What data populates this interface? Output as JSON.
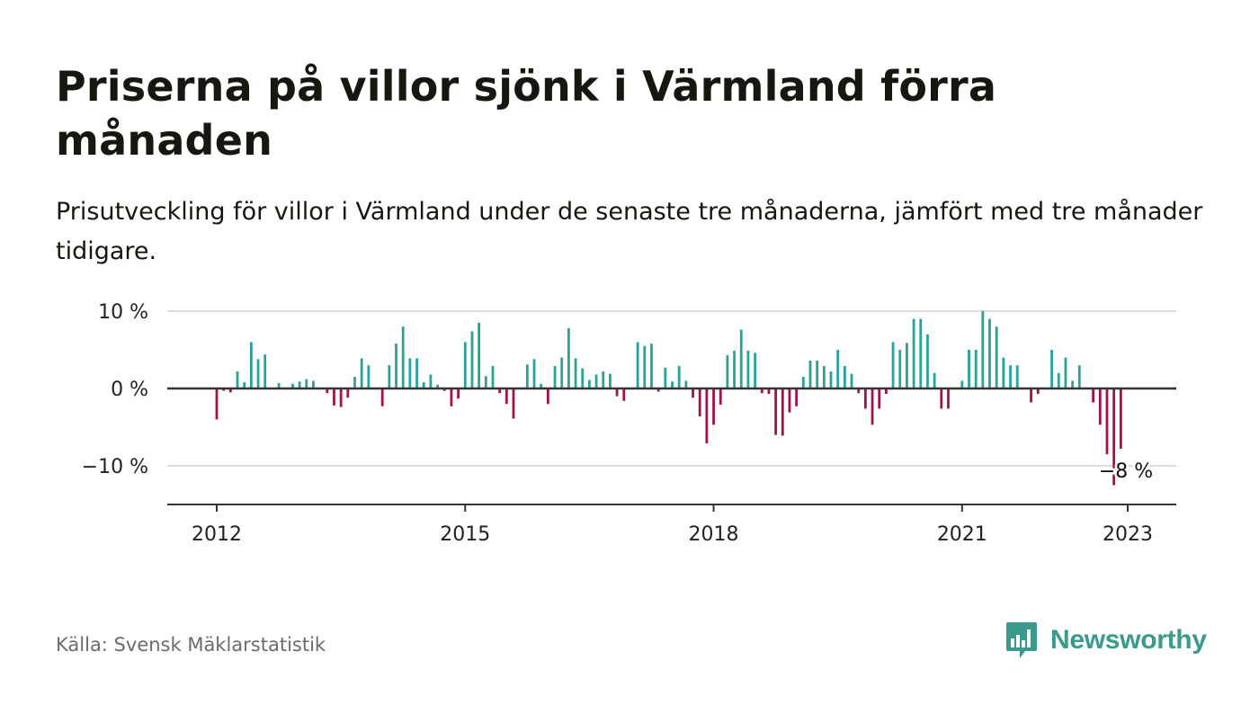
{
  "title": "Priserna på villor sjönk i Värmland förra månaden",
  "subtitle": "Prisutveckling för villor i Värmland under de senaste tre månaderna, jämfört med tre månader tidigare.",
  "source": "Källa: Svensk Mäklarstatistik",
  "brand": {
    "name": "Newsworthy",
    "color": "#3a9a8e",
    "icon": "newsworthy-logo-icon"
  },
  "chart_data": {
    "type": "bar",
    "x_start": "2012-01",
    "x_end": "2023-01",
    "ylim": [
      -15,
      10
    ],
    "yticks": [
      {
        "value": 10,
        "label": "10 %"
      },
      {
        "value": 0,
        "label": "0 %"
      },
      {
        "value": -10,
        "label": "−10 %"
      }
    ],
    "xticks": [
      {
        "date": "2012-01",
        "label": "2012"
      },
      {
        "date": "2015-01",
        "label": "2015"
      },
      {
        "date": "2018-01",
        "label": "2018"
      },
      {
        "date": "2021-01",
        "label": "2021"
      },
      {
        "date": "2023-01",
        "label": "2023"
      }
    ],
    "colors": {
      "positive": "#27a39c",
      "negative": "#a4104c",
      "grid": "#dddddd",
      "zero": "#333333"
    },
    "annotation": {
      "date": "2023-01",
      "label": "−8 %"
    },
    "series": [
      {
        "values": [
          -4.0,
          -0.3,
          -0.5,
          2.2,
          0.8,
          6.0,
          3.8,
          4.4,
          0.0,
          0.7,
          0.0,
          0.6,
          0.9,
          1.2,
          1.0,
          0.0,
          -0.6,
          -2.2,
          -2.4,
          -1.2,
          1.5,
          3.9,
          3.0,
          0.0,
          -2.3,
          3.0,
          5.8,
          8.0,
          3.9,
          3.9,
          0.8,
          1.8,
          0.5,
          -0.3,
          -2.3,
          -1.3,
          6.0,
          7.4,
          8.5,
          1.6,
          2.9,
          -0.6,
          -2.0,
          -3.9,
          0.0,
          3.1,
          3.8,
          0.6,
          -2.0,
          2.9,
          4.0,
          7.8,
          3.9,
          2.6,
          1.1,
          1.8,
          2.2,
          1.9,
          -1.0,
          -1.6,
          0.0,
          6.0,
          5.5,
          5.8,
          -0.4,
          2.7,
          0.9,
          2.9,
          1.0,
          -1.2,
          -3.6,
          -7.1,
          -4.7,
          -2.1,
          4.3,
          4.9,
          7.6,
          4.9,
          4.6,
          -0.6,
          -0.7,
          -6.0,
          -6.1,
          -3.1,
          -2.3,
          1.5,
          3.6,
          3.6,
          2.9,
          2.2,
          5.0,
          2.9,
          1.9,
          -0.6,
          -2.6,
          -4.7,
          -2.6,
          -0.7,
          6.0,
          5.0,
          5.9,
          9.0,
          9.0,
          7.0,
          2.0,
          -2.6,
          -2.6,
          0.0,
          1.0,
          5.0,
          5.0,
          10.0,
          9.0,
          8.0,
          4.0,
          3.0,
          3.0,
          0.0,
          -1.8,
          -0.7,
          0.0,
          5.0,
          2.0,
          4.0,
          1.0,
          3.0,
          0.0,
          -1.8,
          -4.7,
          -8.5,
          -12.5,
          -7.8
        ]
      }
    ]
  }
}
